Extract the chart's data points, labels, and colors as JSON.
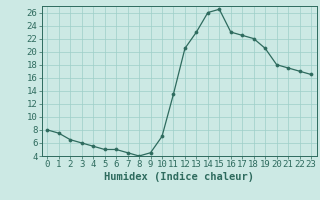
{
  "x": [
    0,
    1,
    2,
    3,
    4,
    5,
    6,
    7,
    8,
    9,
    10,
    11,
    12,
    13,
    14,
    15,
    16,
    17,
    18,
    19,
    20,
    21,
    22,
    23
  ],
  "y": [
    8,
    7.5,
    6.5,
    6,
    5.5,
    5,
    5,
    4.5,
    4,
    4.5,
    7,
    13.5,
    20.5,
    23,
    26,
    26.5,
    23,
    22.5,
    22,
    20.5,
    18,
    17.5,
    17,
    16.5
  ],
  "line_color": "#2e6b5e",
  "marker": "o",
  "marker_size": 2.2,
  "bg_color": "#cce9e4",
  "grid_color": "#9ecfc8",
  "xlabel": "Humidex (Indice chaleur)",
  "ylim": [
    4,
    27
  ],
  "xlim": [
    -0.5,
    23.5
  ],
  "yticks": [
    4,
    6,
    8,
    10,
    12,
    14,
    16,
    18,
    20,
    22,
    24,
    26
  ],
  "xticks": [
    0,
    1,
    2,
    3,
    4,
    5,
    6,
    7,
    8,
    9,
    10,
    11,
    12,
    13,
    14,
    15,
    16,
    17,
    18,
    19,
    20,
    21,
    22,
    23
  ],
  "tick_color": "#2e6b5e",
  "tick_fontsize": 6.5,
  "xlabel_fontsize": 7.5
}
